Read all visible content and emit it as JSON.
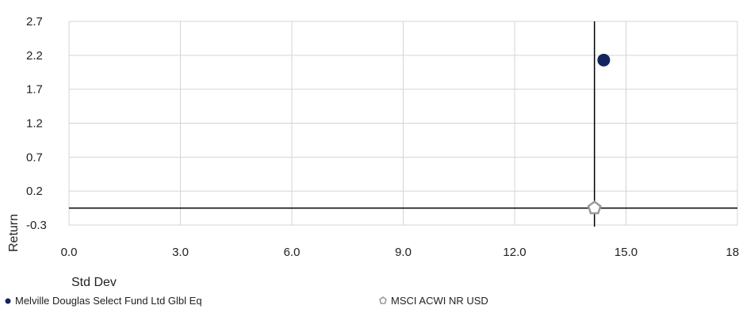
{
  "chart_data": {
    "type": "scatter",
    "xlabel": "Std Dev",
    "ylabel": "Return",
    "xlim": [
      0.0,
      18.0
    ],
    "ylim": [
      -0.3,
      2.7
    ],
    "x_ticks": [
      "0.0",
      "3.0",
      "6.0",
      "9.0",
      "12.0",
      "15.0",
      "18.0"
    ],
    "x_tick_values": [
      0,
      3,
      6,
      9,
      12,
      15,
      18
    ],
    "y_ticks": [
      "2.7",
      "2.2",
      "1.7",
      "1.2",
      "0.7",
      "0.2",
      "-0.3"
    ],
    "y_tick_values": [
      2.7,
      2.2,
      1.7,
      1.2,
      0.7,
      0.2,
      -0.3
    ],
    "grid": true,
    "reference_lines": {
      "x": 14.15,
      "y": -0.05
    },
    "legend_position": "bottom",
    "series": [
      {
        "name": "Melville Douglas Select Fund Ltd Glbl Eq",
        "marker": "circle",
        "color": "#13245e",
        "x": 14.4,
        "y": 2.13
      },
      {
        "name": "MSCI ACWI NR USD",
        "marker": "pentagon",
        "color": "#9a9a9a",
        "x": 14.15,
        "y": -0.05
      }
    ]
  }
}
